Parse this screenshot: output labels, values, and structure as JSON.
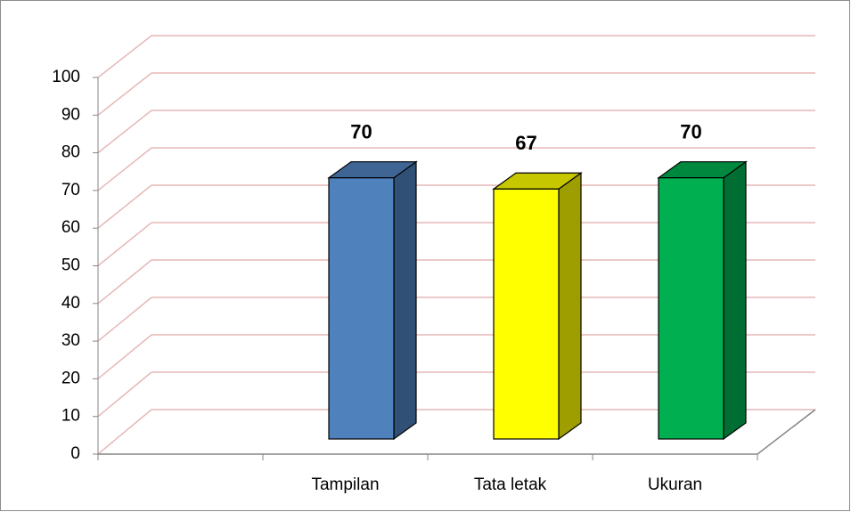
{
  "chart_data": {
    "type": "bar3d",
    "categories": [
      null,
      "Tampilan",
      "Tata letak",
      "Ukuran"
    ],
    "values": [
      null,
      70,
      67,
      70
    ],
    "colors": [
      "#4f81bd",
      "#4f81bd",
      "#ffff00",
      "#00b050"
    ],
    "ylim": [
      0,
      100
    ],
    "yticks": [
      0,
      10,
      20,
      30,
      40,
      50,
      60,
      70,
      80,
      90,
      100
    ],
    "grid": true
  }
}
